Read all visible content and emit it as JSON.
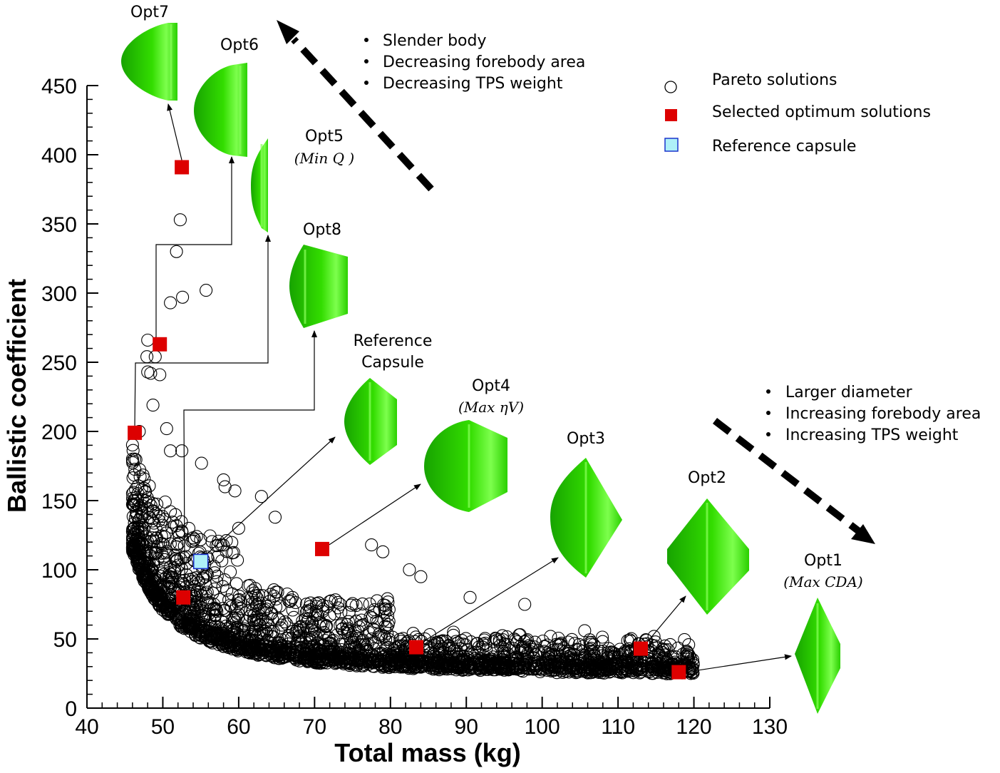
{
  "chart_data": {
    "type": "scatter",
    "xlabel": "Total mass (kg)",
    "ylabel": "Ballistic coefficient",
    "xlim": [
      40,
      130
    ],
    "ylim": [
      0,
      450
    ],
    "x_ticks": [
      "40",
      "50",
      "60",
      "70",
      "80",
      "90",
      "100",
      "110",
      "120",
      "130"
    ],
    "y_ticks": [
      "0",
      "50",
      "100",
      "150",
      "200",
      "250",
      "300",
      "350",
      "400",
      "450"
    ],
    "legend": {
      "placement": "top-right",
      "entries": [
        "Pareto solutions",
        "Selected optimum solutions",
        "Reference capsule"
      ]
    },
    "series": [
      {
        "name": "Pareto solutions",
        "marker": "open-circle",
        "color": "#000000",
        "trend": "dense front from (46, 190) decaying to (120, 25)",
        "outliers": [
          {
            "x": 52.3,
            "y": 353
          },
          {
            "x": 51.8,
            "y": 330
          },
          {
            "x": 51.0,
            "y": 293
          },
          {
            "x": 52.6,
            "y": 297
          },
          {
            "x": 55.7,
            "y": 302
          },
          {
            "x": 48.0,
            "y": 266
          },
          {
            "x": 47.9,
            "y": 254
          },
          {
            "x": 49.0,
            "y": 254
          },
          {
            "x": 48.0,
            "y": 243
          },
          {
            "x": 48.4,
            "y": 242
          },
          {
            "x": 49.6,
            "y": 241
          },
          {
            "x": 48.7,
            "y": 219
          },
          {
            "x": 50.5,
            "y": 202
          },
          {
            "x": 46.9,
            "y": 200
          },
          {
            "x": 52.5,
            "y": 186
          },
          {
            "x": 51.0,
            "y": 186
          },
          {
            "x": 55.1,
            "y": 177
          },
          {
            "x": 58.0,
            "y": 165
          },
          {
            "x": 58.2,
            "y": 160
          },
          {
            "x": 59.5,
            "y": 157
          },
          {
            "x": 63.0,
            "y": 153
          },
          {
            "x": 64.8,
            "y": 138
          },
          {
            "x": 60.0,
            "y": 130
          },
          {
            "x": 77.5,
            "y": 118
          },
          {
            "x": 79.0,
            "y": 113
          },
          {
            "x": 82.5,
            "y": 100
          },
          {
            "x": 84.0,
            "y": 95
          },
          {
            "x": 90.5,
            "y": 80
          },
          {
            "x": 97.7,
            "y": 75
          },
          {
            "x": 105.6,
            "y": 56
          },
          {
            "x": 114.2,
            "y": 40
          },
          {
            "x": 119.5,
            "y": 27
          }
        ]
      },
      {
        "name": "Selected optimum solutions",
        "marker": "filled-square",
        "color": "#dd0000",
        "points": [
          {
            "label": "Opt7",
            "x": 52.5,
            "y": 391
          },
          {
            "label": "Opt6",
            "x": 49.6,
            "y": 263
          },
          {
            "label": "Opt5",
            "x": 46.3,
            "y": 199
          },
          {
            "label": "Opt8",
            "x": 52.7,
            "y": 80
          },
          {
            "label": "Opt4",
            "x": 71.0,
            "y": 115
          },
          {
            "label": "Opt3",
            "x": 83.4,
            "y": 44
          },
          {
            "label": "Opt2",
            "x": 113.0,
            "y": 43
          },
          {
            "label": "Opt1",
            "x": 118.0,
            "y": 26
          }
        ]
      },
      {
        "name": "Reference capsule",
        "marker": "open-square",
        "color": "#aef0f8",
        "points": [
          {
            "label": "Reference Capsule",
            "x": 55.0,
            "y": 106
          }
        ]
      }
    ],
    "annotations": {
      "upper_left_bullets": [
        "Slender body",
        "Decreasing forebody area",
        "Decreasing TPS weight"
      ],
      "lower_right_bullets": [
        "Larger diameter",
        "Increasing forebody area",
        "Increasing TPS weight"
      ]
    },
    "shape_labels": {
      "opt7": "Opt7",
      "opt6": "Opt6",
      "opt5": "Opt5",
      "opt5_sub": "(Min Q )",
      "opt8": "Opt8",
      "ref_line1": "Reference",
      "ref_line2": "Capsule",
      "opt4": "Opt4",
      "opt4_sub": "(Max ηV)",
      "opt3": "Opt3",
      "opt2": "Opt2",
      "opt1": "Opt1",
      "opt1_sub": "(Max CDA)"
    }
  },
  "colors": {
    "capsule_green": "#22cc00",
    "capsule_highlight": "#66ff33",
    "optimum_red": "#dd0000",
    "reference_cyan": "#aef0f8"
  }
}
